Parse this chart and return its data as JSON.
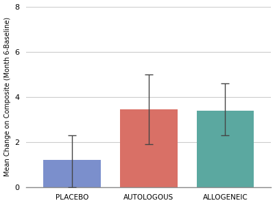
{
  "categories": [
    "PLACEBO",
    "AUTOLOGOUS",
    "ALLOGENEIC"
  ],
  "values": [
    1.2,
    3.45,
    3.4
  ],
  "errors_low": [
    1.2,
    1.55,
    1.1
  ],
  "errors_high": [
    1.1,
    1.55,
    1.2
  ],
  "bar_colors": [
    "#7B8FCC",
    "#D97066",
    "#5BA8A0"
  ],
  "ylabel": "Mean Change on Composite (Month 6-Baseline)",
  "ylim": [
    0,
    8
  ],
  "yticks": [
    0,
    2,
    4,
    6,
    8
  ],
  "background_color": "#FFFFFF",
  "grid_color": "#CCCCCC",
  "bar_width": 0.75,
  "capsize": 4,
  "error_color": "#444444",
  "xlabel_fontsize": 7.5,
  "ylabel_fontsize": 7,
  "tick_fontsize": 8,
  "x_positions": [
    0,
    1,
    2
  ]
}
